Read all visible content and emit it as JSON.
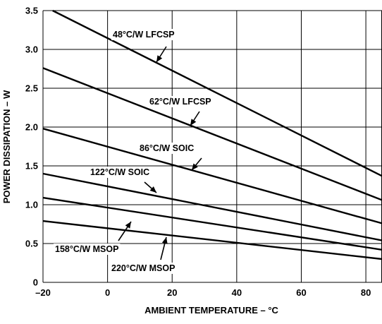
{
  "chart_data": {
    "type": "line",
    "xlabel": "AMBIENT TEMPERATURE – °C",
    "ylabel": "POWER DISSIPATION – W",
    "xlim": [
      -20,
      85
    ],
    "ylim": [
      0,
      3.5
    ],
    "x_ticks": [
      -20,
      0,
      20,
      40,
      60,
      80
    ],
    "x_tick_labels": [
      "–20",
      "0",
      "20",
      "40",
      "60",
      "80"
    ],
    "y_ticks": [
      0,
      0.5,
      1.0,
      1.5,
      2.0,
      2.5,
      3.0,
      3.5
    ],
    "y_tick_labels": [
      "0",
      "0.5",
      "1.0",
      "1.5",
      "2.0",
      "2.5",
      "3.0",
      "3.5"
    ],
    "grid": true,
    "series": [
      {
        "name": "48°C/W LFCSP",
        "x": [
          -17,
          85
        ],
        "y": [
          3.5,
          1.37
        ]
      },
      {
        "name": "62°C/W LFCSP",
        "x": [
          -20,
          85
        ],
        "y": [
          2.76,
          1.06
        ]
      },
      {
        "name": "86°C/W SOIC",
        "x": [
          -20,
          85
        ],
        "y": [
          1.98,
          0.76
        ]
      },
      {
        "name": "122°C/W SOIC",
        "x": [
          -20,
          85
        ],
        "y": [
          1.4,
          0.54
        ]
      },
      {
        "name": "158°C/W MSOP",
        "x": [
          -20,
          85
        ],
        "y": [
          1.09,
          0.42
        ]
      },
      {
        "name": "220°C/W MSOP",
        "x": [
          -20,
          85
        ],
        "y": [
          0.79,
          0.3
        ]
      }
    ]
  }
}
